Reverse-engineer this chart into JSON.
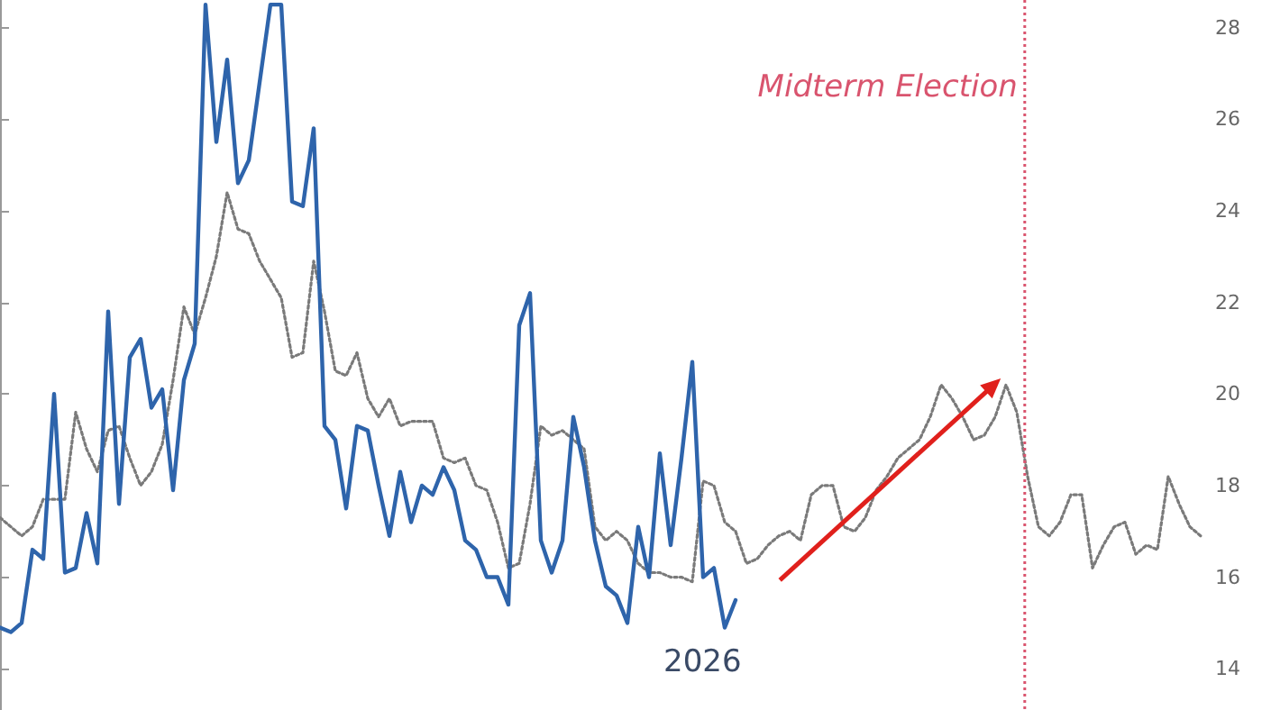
{
  "chart_data": {
    "type": "line",
    "categories": [
      null,
      null,
      null,
      null,
      null,
      null,
      null,
      null,
      null,
      null,
      null,
      null,
      null,
      null,
      null,
      null,
      null,
      null,
      null,
      null,
      null,
      null,
      null,
      null,
      null,
      null,
      null,
      null,
      null,
      null,
      null,
      null,
      null,
      null,
      null,
      null,
      null,
      null,
      null,
      null,
      null,
      null,
      null,
      null,
      null,
      null,
      null,
      null,
      null,
      null,
      null,
      null,
      null,
      null,
      null,
      null,
      null,
      null,
      null,
      null,
      null,
      null,
      null,
      null,
      null,
      null,
      null,
      null,
      null,
      null,
      null,
      null,
      null,
      null,
      null,
      null,
      null,
      null,
      null,
      null,
      null,
      null,
      null,
      null,
      null,
      null,
      null,
      null,
      null,
      null,
      null,
      null,
      null,
      null,
      null,
      null,
      null,
      null,
      null,
      null,
      null,
      null,
      null,
      null,
      null,
      null,
      null,
      null,
      null,
      null,
      null,
      null
    ],
    "series": [
      {
        "color": "#7a7a7a",
        "line_style": "dotted",
        "values": [
          17.3,
          17.1,
          16.9,
          17.1,
          17.7,
          17.7,
          17.7,
          19.6,
          18.8,
          18.3,
          19.2,
          19.3,
          18.6,
          18.0,
          18.3,
          18.9,
          20.3,
          21.9,
          21.3,
          22.1,
          23.0,
          24.4,
          23.6,
          23.5,
          22.9,
          22.5,
          22.1,
          20.8,
          20.9,
          22.9,
          21.8,
          20.5,
          20.4,
          20.9,
          19.9,
          19.5,
          19.9,
          19.3,
          19.4,
          19.4,
          19.4,
          18.6,
          18.5,
          18.6,
          18.0,
          17.9,
          17.2,
          16.2,
          16.3,
          17.6,
          19.3,
          19.1,
          19.2,
          19.0,
          18.8,
          17.1,
          16.8,
          17.0,
          16.8,
          16.3,
          16.1,
          16.1,
          16.0,
          16.0,
          15.9,
          18.1,
          18.0,
          17.2,
          17.0,
          16.3,
          16.4,
          16.7,
          16.9,
          17.0,
          16.8,
          17.8,
          18.0,
          18.0,
          17.1,
          17.0,
          17.3,
          17.9,
          18.2,
          18.6,
          18.8,
          19.0,
          19.5,
          20.2,
          19.9,
          19.5,
          19.0,
          19.1,
          19.5,
          20.2,
          19.6,
          18.2,
          17.1,
          16.9,
          17.2,
          17.8,
          17.8,
          16.2,
          16.7,
          17.1,
          17.2,
          16.5,
          16.7,
          16.6,
          18.2,
          17.6,
          17.1,
          16.9
        ]
      },
      {
        "color": "#2e64ab",
        "line_style": "solid",
        "values": [
          14.9,
          14.8,
          15.0,
          16.6,
          16.4,
          20.0,
          16.1,
          16.2,
          17.4,
          16.3,
          21.8,
          17.6,
          20.8,
          21.2,
          19.7,
          20.1,
          17.9,
          20.3,
          21.1,
          28.5,
          25.5,
          27.3,
          24.6,
          25.1,
          26.8,
          28.5,
          28.5,
          24.2,
          24.1,
          25.8,
          19.3,
          19.0,
          17.5,
          19.3,
          19.2,
          18.0,
          16.9,
          18.3,
          17.2,
          18.0,
          17.8,
          18.4,
          17.9,
          16.8,
          16.6,
          16.0,
          16.0,
          15.4,
          21.5,
          22.2,
          16.8,
          16.1,
          16.8,
          19.5,
          18.4,
          16.8,
          15.8,
          15.6,
          15.0,
          17.1,
          16.0,
          18.7,
          16.7,
          18.6,
          20.7,
          16.0,
          16.2,
          14.9,
          15.5,
          null,
          null,
          null,
          null,
          null,
          null,
          null,
          null,
          null,
          null,
          null,
          null,
          null,
          null,
          null,
          null,
          null,
          null,
          null,
          null,
          null,
          null,
          null,
          null,
          null,
          null,
          null,
          null,
          null,
          null,
          null,
          null,
          null,
          null,
          null,
          null,
          null,
          null,
          null,
          null,
          null,
          null,
          null
        ]
      }
    ],
    "ylim": [
      13.1,
      28.6
    ],
    "yticks": [
      14,
      16,
      18,
      20,
      22,
      24,
      26,
      28
    ],
    "tick_labels": "y",
    "marker": "none",
    "annotations": [
      "Midterm Election",
      "2026"
    ]
  }
}
